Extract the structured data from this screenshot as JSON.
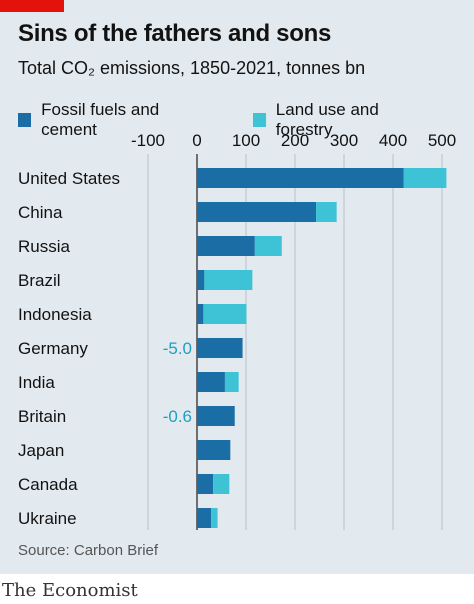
{
  "header": {
    "title": "Sins of the fathers and sons",
    "subtitle": "Total CO₂ emissions, 1850-2021, tonnes bn"
  },
  "legend": {
    "fossil_label": "Fossil fuels and cement",
    "land_label": "Land use and forestry"
  },
  "footer": {
    "source": "Source: Carbon Brief",
    "brand": "The Economist"
  },
  "colors": {
    "fossil": "#1b6ea5",
    "land": "#3ec3d6",
    "negative_label": "#1f9fc0"
  },
  "chart_data": {
    "type": "bar",
    "orientation": "horizontal",
    "stacked": true,
    "categories": [
      "United States",
      "China",
      "Russia",
      "Brazil",
      "Indonesia",
      "Germany",
      "India",
      "Britain",
      "Japan",
      "Canada",
      "Ukraine"
    ],
    "series": [
      {
        "name": "Fossil fuels and cement",
        "values": [
          422,
          243,
          118,
          15,
          13,
          93,
          57,
          77,
          68,
          33,
          29
        ]
      },
      {
        "name": "Land use and forestry",
        "values": [
          87,
          42,
          55,
          98,
          88,
          -5.0,
          28,
          -0.6,
          0,
          33,
          13
        ]
      }
    ],
    "annotations": [
      {
        "category": "Germany",
        "text": "-5.0"
      },
      {
        "category": "Britain",
        "text": "-0.6"
      }
    ],
    "xlim": [
      -100,
      520
    ],
    "xticks": [
      -100,
      0,
      100,
      200,
      300,
      400,
      500
    ],
    "xtick_labels": [
      "-100",
      "0",
      "100",
      "200",
      "300",
      "400",
      "500"
    ],
    "xaxis_position": "top",
    "grid": true,
    "legend_position": "top-left"
  }
}
